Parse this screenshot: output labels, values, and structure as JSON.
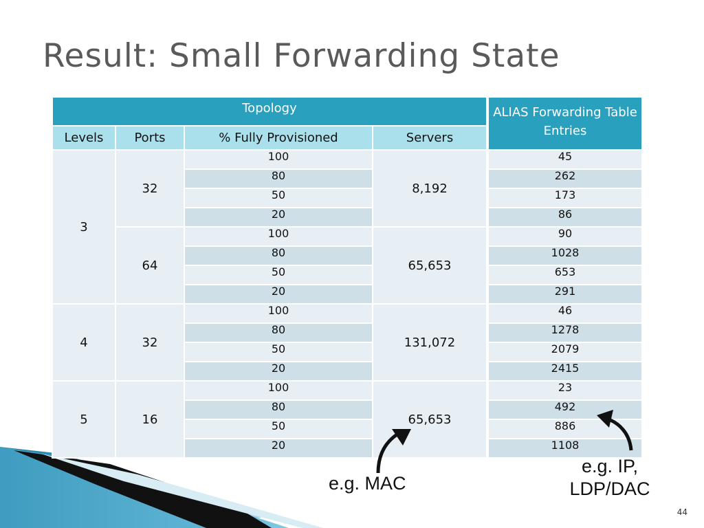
{
  "slide": {
    "title": "Result: Small Forwarding State",
    "page_number": "44"
  },
  "table": {
    "topology_header": "Topology",
    "alias_header": "ALIAS Forwarding Table Entries",
    "columns": [
      "Levels",
      "Ports",
      "% Fully Provisioned",
      "Servers"
    ],
    "groups": [
      {
        "levels": "3",
        "port_groups": [
          {
            "ports": "32",
            "servers": "8,192",
            "rows": [
              [
                "100",
                "45"
              ],
              [
                "80",
                "262"
              ],
              [
                "50",
                "173"
              ],
              [
                "20",
                "86"
              ]
            ]
          },
          {
            "ports": "64",
            "servers": "65,653",
            "rows": [
              [
                "100",
                "90"
              ],
              [
                "80",
                "1028"
              ],
              [
                "50",
                "653"
              ],
              [
                "20",
                "291"
              ]
            ]
          }
        ]
      },
      {
        "levels": "4",
        "port_groups": [
          {
            "ports": "32",
            "servers": "131,072",
            "rows": [
              [
                "100",
                "46"
              ],
              [
                "80",
                "1278"
              ],
              [
                "50",
                "2079"
              ],
              [
                "20",
                "2415"
              ]
            ]
          }
        ]
      },
      {
        "levels": "5",
        "port_groups": [
          {
            "ports": "16",
            "servers": "65,653",
            "rows": [
              [
                "100",
                "23"
              ],
              [
                "80",
                "492"
              ],
              [
                "50",
                "886"
              ],
              [
                "20",
                "1108"
              ]
            ]
          }
        ]
      }
    ]
  },
  "annotations": {
    "mac_note": "e.g. MAC",
    "ip_note_line1": "e.g. IP,",
    "ip_note_line2": "LDP/DAC"
  },
  "colors": {
    "header_dark": "#2aa0bf",
    "header_light": "#a9e0ec",
    "row_light": "#e8eff4",
    "row_dark": "#cfdfe8",
    "title": "#5a5a5a"
  }
}
